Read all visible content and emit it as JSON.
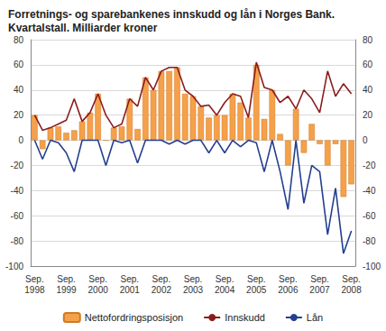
{
  "chart_data": {
    "type": "bar",
    "title": "Forretnings- og sparebankenes innskudd og lån i Norges Bank.\nKvartalstall. Milliarder kroner",
    "categories": [
      "Sep.\n1998",
      null,
      null,
      null,
      "Sep.\n1999",
      null,
      null,
      null,
      "Sep.\n2000",
      null,
      null,
      null,
      "Sep.\n2001",
      null,
      null,
      null,
      "Sep.\n2002",
      null,
      null,
      null,
      "Sep.\n2003",
      null,
      null,
      null,
      "Sep.\n2004",
      null,
      null,
      null,
      "Sep.\n2005",
      null,
      null,
      null,
      "Sep.\n2006",
      null,
      null,
      null,
      "Sep.\n2007",
      null,
      null,
      null,
      "Sep.\n2008"
    ],
    "series": [
      {
        "name": "Nettofordringsposisjon",
        "type": "bar",
        "color": "#f5a04a",
        "values": [
          20,
          -7,
          10,
          11,
          6,
          8,
          15,
          22,
          37,
          0,
          10,
          11,
          33,
          9,
          50,
          40,
          55,
          55,
          58,
          37,
          35,
          27,
          18,
          20,
          20,
          37,
          30,
          18,
          60,
          17,
          40,
          5,
          -20,
          25,
          -10,
          13,
          -3,
          -20,
          -3,
          -45,
          -35
        ]
      },
      {
        "name": "Innskudd",
        "type": "line",
        "color": "#8b1c1c",
        "values": [
          20,
          8,
          10,
          13,
          16,
          33,
          15,
          22,
          37,
          20,
          10,
          13,
          33,
          27,
          50,
          40,
          55,
          58,
          58,
          40,
          35,
          27,
          28,
          20,
          30,
          37,
          35,
          18,
          62,
          42,
          40,
          30,
          35,
          25,
          40,
          33,
          22,
          55,
          35,
          45,
          37
        ]
      },
      {
        "name": "Lån",
        "type": "line",
        "color": "#233f8f",
        "values": [
          0,
          -15,
          0,
          -2,
          -10,
          -25,
          0,
          0,
          0,
          -20,
          0,
          -2,
          0,
          -18,
          0,
          0,
          0,
          -3,
          0,
          -3,
          0,
          0,
          -10,
          0,
          -10,
          0,
          -5,
          0,
          -2,
          -25,
          0,
          -25,
          -55,
          0,
          -50,
          -20,
          -25,
          -75,
          -38,
          -90,
          -72
        ]
      }
    ],
    "ylim": [
      -100,
      80
    ],
    "yticks": [
      -100,
      -80,
      -60,
      -40,
      -20,
      0,
      20,
      40,
      60,
      80
    ],
    "y2lim": [
      -100,
      80
    ],
    "y2ticks": [
      -100,
      -80,
      -60,
      -40,
      -20,
      0,
      20,
      40,
      60,
      80
    ],
    "grid": true,
    "legend": "bottom"
  }
}
